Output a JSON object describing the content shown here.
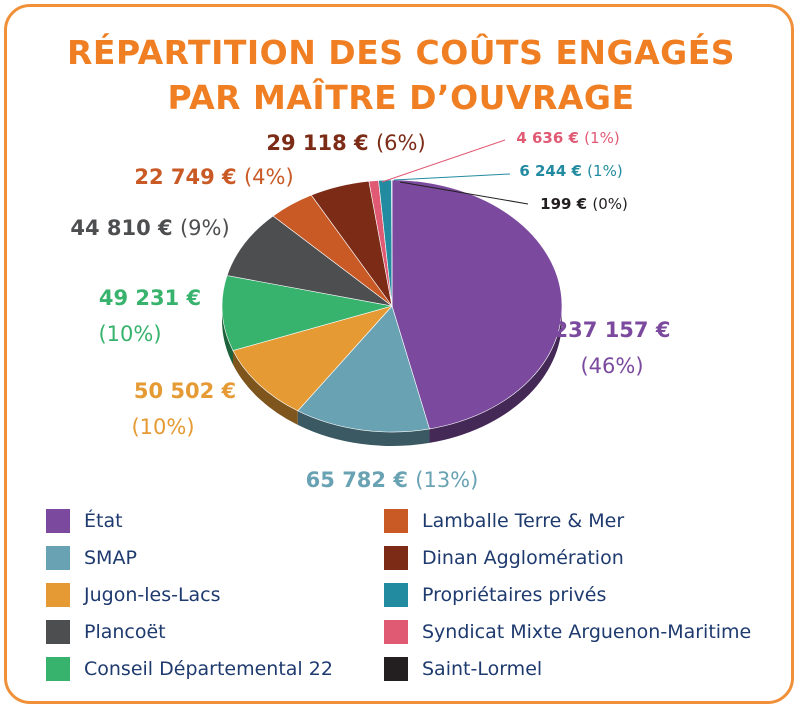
{
  "chart_data": {
    "type": "pie",
    "title": "RÉPARTITION DES COÛTS ENGAGÉS",
    "subtitle": "PAR MAÎTRE D’OUVRAGE",
    "legend_position": "bottom",
    "slices": [
      {
        "name": "État",
        "value": 237157,
        "value_label": "237 157 €",
        "percent_label": "(46%)",
        "color": "#7b4a9e"
      },
      {
        "name": "SMAP",
        "value": 65782,
        "value_label": "65 782 €",
        "percent_label": "(13%)",
        "color": "#69a2b3"
      },
      {
        "name": "Jugon-les-Lacs",
        "value": 50502,
        "value_label": "50 502 €",
        "percent_label": "(10%)",
        "color": "#e59a34"
      },
      {
        "name": "Conseil Départemental 22",
        "value": 49231,
        "value_label": "49 231 €",
        "percent_label": "(10%)",
        "color": "#37b36d"
      },
      {
        "name": "Plancoët",
        "value": 44810,
        "value_label": "44 810 €",
        "percent_label": "(9%)",
        "color": "#4d4e50"
      },
      {
        "name": "Lamballe Terre & Mer",
        "value": 22749,
        "value_label": "22 749 €",
        "percent_label": "(4%)",
        "color": "#c95a26"
      },
      {
        "name": "Dinan Agglomération",
        "value": 29118,
        "value_label": "29 118 €",
        "percent_label": "(6%)",
        "color": "#7c2b16"
      },
      {
        "name": "Syndicat Mixte Arguenon-Maritime",
        "value": 4636,
        "value_label": "4 636 €",
        "percent_label": "(1%)",
        "color": "#e05a74"
      },
      {
        "name": "Propriétaires privés",
        "value": 6244,
        "value_label": "6 244 €",
        "percent_label": "(1%)",
        "color": "#238ba0"
      },
      {
        "name": "Saint-Lormel",
        "value": 199,
        "value_label": "199 €",
        "percent_label": "(0%)",
        "color": "#231f20"
      }
    ]
  },
  "legend": {
    "left": [
      "État",
      "SMAP",
      "Jugon-les-Lacs",
      "Plancoët",
      "Conseil Départemental 22"
    ],
    "right": [
      "Lamballe Terre & Mer",
      "Dinan Agglomération",
      "Propriétaires privés",
      "Syndicat Mixte Arguenon-Maritime",
      "Saint-Lormel"
    ]
  }
}
